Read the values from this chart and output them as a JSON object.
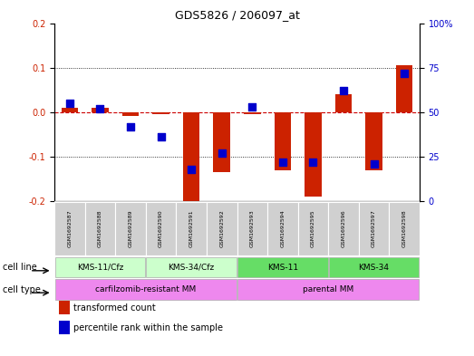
{
  "title": "GDS5826 / 206097_at",
  "samples": [
    "GSM1692587",
    "GSM1692588",
    "GSM1692589",
    "GSM1692590",
    "GSM1692591",
    "GSM1692592",
    "GSM1692593",
    "GSM1692594",
    "GSM1692595",
    "GSM1692596",
    "GSM1692597",
    "GSM1692598"
  ],
  "transformed_count": [
    0.01,
    0.01,
    -0.008,
    -0.005,
    -0.2,
    -0.135,
    -0.005,
    -0.13,
    -0.19,
    0.04,
    -0.13,
    0.105
  ],
  "percentile_rank": [
    55,
    52,
    42,
    36,
    18,
    27,
    53,
    22,
    22,
    62,
    21,
    72
  ],
  "ylim_left": [
    -0.2,
    0.2
  ],
  "ylim_right": [
    0,
    100
  ],
  "yticks_left": [
    -0.2,
    -0.1,
    0.0,
    0.1,
    0.2
  ],
  "yticks_right": [
    0,
    25,
    50,
    75,
    100
  ],
  "ytick_labels_right": [
    "0",
    "25",
    "50",
    "75",
    "100%"
  ],
  "bar_color": "#cc2200",
  "point_color": "#0000cc",
  "zero_line_color": "#cc0000",
  "grid_color": "#000000",
  "cell_lines": [
    {
      "label": "KMS-11/Cfz",
      "start": 0,
      "end": 3,
      "color": "#ccffcc"
    },
    {
      "label": "KMS-34/Cfz",
      "start": 3,
      "end": 6,
      "color": "#ccffcc"
    },
    {
      "label": "KMS-11",
      "start": 6,
      "end": 9,
      "color": "#66dd66"
    },
    {
      "label": "KMS-34",
      "start": 9,
      "end": 12,
      "color": "#66dd66"
    }
  ],
  "cell_types": [
    {
      "label": "carfilzomib-resistant MM",
      "start": 0,
      "end": 6,
      "color": "#ee88ee"
    },
    {
      "label": "parental MM",
      "start": 6,
      "end": 12,
      "color": "#ee88ee"
    }
  ],
  "cell_line_label": "cell line",
  "cell_type_label": "cell type",
  "legend_items": [
    {
      "label": "transformed count",
      "color": "#cc2200"
    },
    {
      "label": "percentile rank within the sample",
      "color": "#0000cc"
    }
  ],
  "bar_width": 0.55,
  "point_size": 28,
  "background_color": "#ffffff",
  "plot_bg_color": "#ffffff",
  "left_ycolor": "#cc2200",
  "right_ycolor": "#0000cc",
  "sample_box_color": "#d0d0d0",
  "sample_box_edge": "#ffffff"
}
